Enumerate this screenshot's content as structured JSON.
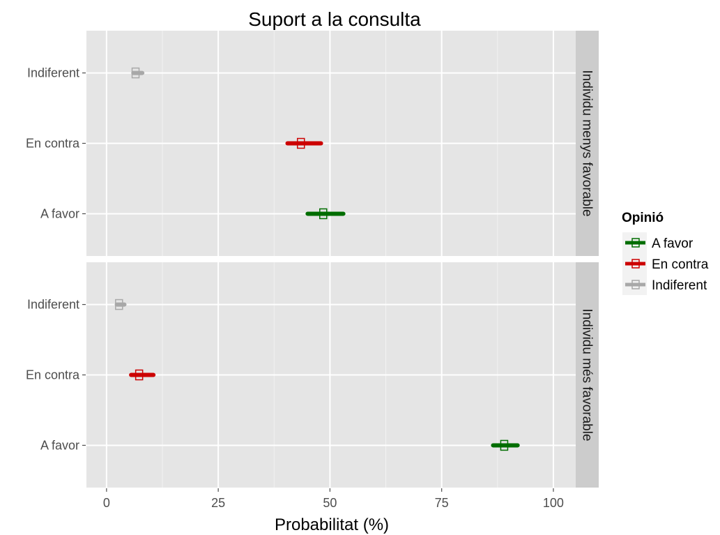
{
  "chart_data": {
    "type": "scatter",
    "title": "Suport a la consulta",
    "xlabel": "Probabilitat (%)",
    "ylabel": "",
    "xlim": [
      -4.5,
      105
    ],
    "x_ticks": [
      "0",
      "25",
      "50",
      "75",
      "100"
    ],
    "x_tick_values": [
      0,
      25,
      50,
      75,
      100
    ],
    "categories": [
      "Indiferent",
      "En contra",
      "A favor"
    ],
    "grid": true,
    "legend": {
      "title": "Opinió",
      "position": "right",
      "entries": [
        {
          "label": "A favor",
          "color": "#006d00"
        },
        {
          "label": "En contra",
          "color": "#cc0000"
        },
        {
          "label": "Indiferent",
          "color": "#a8a8a8"
        }
      ]
    },
    "panels": [
      {
        "strip": "Individu menys favorable",
        "points": [
          {
            "category": "Indiferent",
            "value": 6.5,
            "low": 6.0,
            "high": 8.0
          },
          {
            "category": "En contra",
            "value": 43.5,
            "low": 40.5,
            "high": 48.0
          },
          {
            "category": "A favor",
            "value": 48.5,
            "low": 45.0,
            "high": 53.0
          }
        ]
      },
      {
        "strip": "Individu més favorable",
        "points": [
          {
            "category": "Indiferent",
            "value": 2.8,
            "low": 2.3,
            "high": 4.0
          },
          {
            "category": "En contra",
            "value": 7.3,
            "low": 5.5,
            "high": 10.5
          },
          {
            "category": "A favor",
            "value": 89.0,
            "low": 86.5,
            "high": 92.0
          }
        ]
      }
    ]
  }
}
